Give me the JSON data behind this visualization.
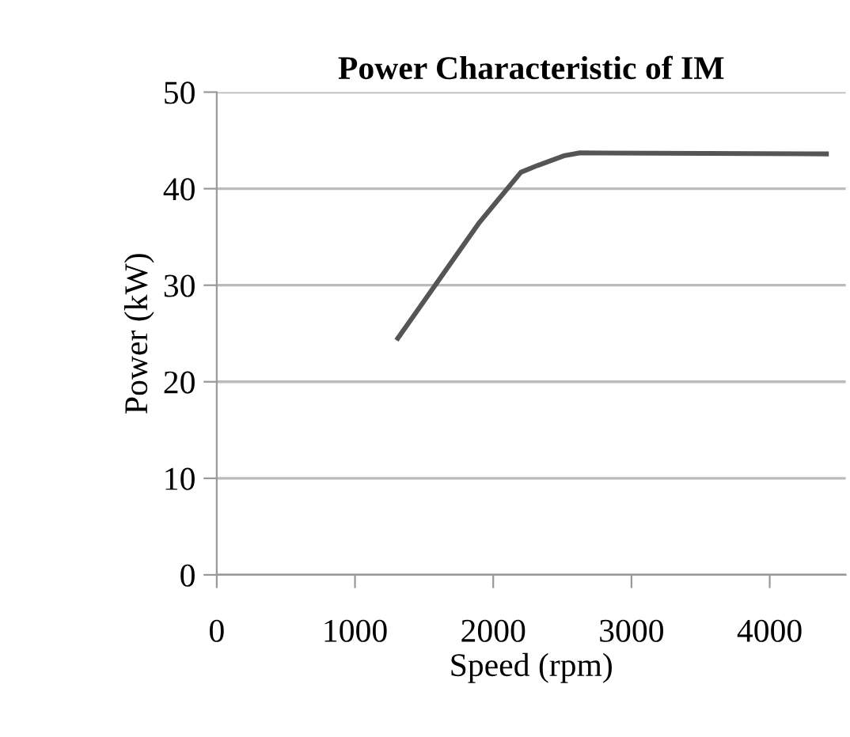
{
  "chart_data": {
    "type": "line",
    "title": "Power Characteristic of IM",
    "xlabel": "Speed (rpm)",
    "ylabel": "Power (kW)",
    "x": [
      1310,
      1580,
      1900,
      2200,
      2320,
      2510,
      2620,
      4410
    ],
    "series": [
      {
        "color": "#555555",
        "values": [
          24.5,
          30.0,
          36.5,
          41.7,
          42.4,
          43.4,
          43.7,
          43.6
        ]
      }
    ],
    "xlim": [
      0,
      4550
    ],
    "ylim": [
      0,
      50
    ],
    "xticks": [
      0,
      1000,
      2000,
      3000,
      4000
    ],
    "yticks": [
      0,
      10,
      20,
      30,
      40,
      50
    ],
    "grid": "y",
    "legend": false,
    "marker": "none",
    "line_style": "solid"
  }
}
